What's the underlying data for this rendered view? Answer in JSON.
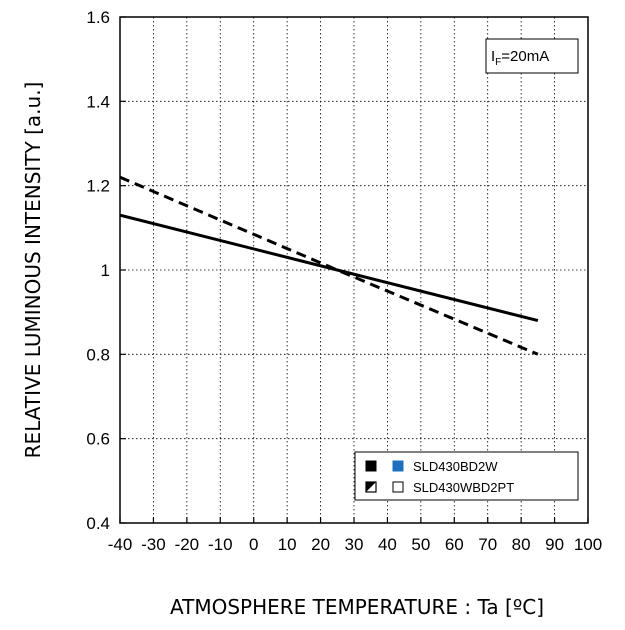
{
  "chart_data": {
    "type": "line",
    "xlabel": "ATMOSPHERE TEMPERATURE : Ta [ºC]",
    "ylabel": "RELATIVE LUMINOUS INTENSITY [a.u.]",
    "xlim": [
      -40,
      100
    ],
    "ylim": [
      0.4,
      1.6
    ],
    "x_ticks": [
      -40,
      -30,
      -20,
      -10,
      0,
      10,
      20,
      30,
      40,
      50,
      60,
      70,
      80,
      90,
      100
    ],
    "x_tick_labels": [
      "-40",
      "-30",
      "-20",
      "-10",
      "0",
      "10",
      "20",
      "30",
      "40",
      "50",
      "60",
      "70",
      "80",
      "90",
      "100"
    ],
    "y_ticks": [
      0.4,
      0.6,
      0.8,
      1.0,
      1.2,
      1.4,
      1.6
    ],
    "y_tick_labels": [
      "0.4",
      "0.6",
      "0.8",
      "1",
      "1.2",
      "1.4",
      "1.6"
    ],
    "grid": true,
    "legend_position": "bottom-right",
    "annotation": {
      "main": "I",
      "sub": "F",
      "rest": "=20mA"
    },
    "series": [
      {
        "name": "SLD430BD2W",
        "style": "solid",
        "color": "#000000",
        "marker_colors": [
          "#000000",
          "#1f6fbf"
        ],
        "x": [
          -40,
          25,
          85
        ],
        "y": [
          1.13,
          1.0,
          0.88
        ]
      },
      {
        "name": "SLD430WBD2PT",
        "style": "dashed",
        "color": "#000000",
        "marker_colors": [
          "#000000",
          "#ffffff"
        ],
        "x": [
          -40,
          25,
          85
        ],
        "y": [
          1.22,
          1.0,
          0.8
        ]
      }
    ]
  }
}
